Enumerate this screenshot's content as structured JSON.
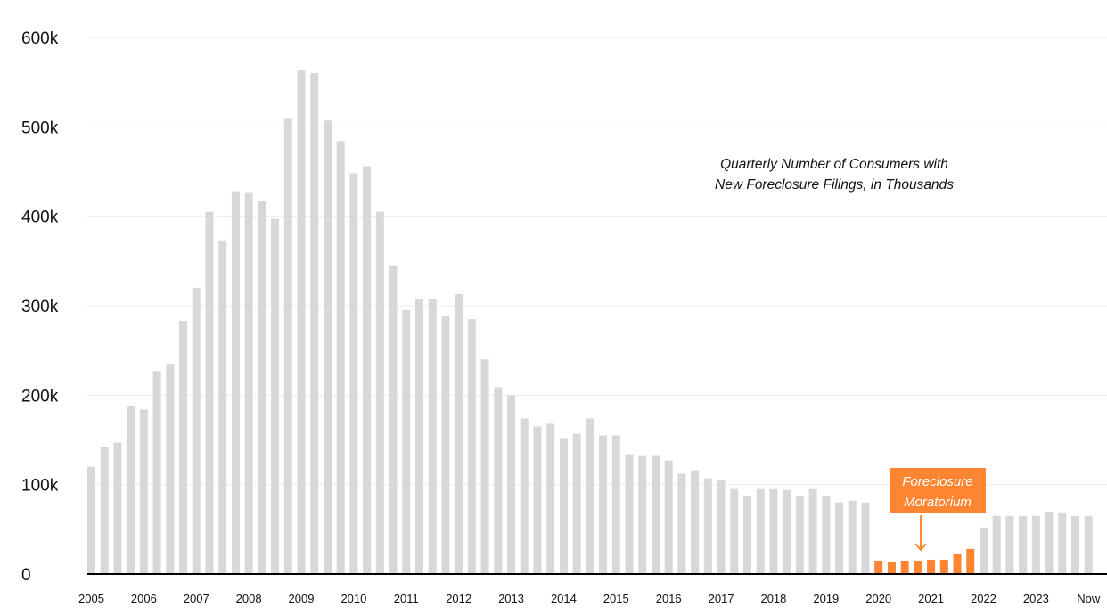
{
  "chart_data": {
    "type": "bar",
    "title": "",
    "xlabel": "",
    "ylabel": "",
    "annotation": [
      "Quarterly Number of Consumers with",
      "New Foreclosure Filings, in Thousands"
    ],
    "ylim": [
      0,
      600000
    ],
    "y_ticks": [
      {
        "value": 0,
        "label": "0"
      },
      {
        "value": 100000,
        "label": "100k"
      },
      {
        "value": 200000,
        "label": "200k"
      },
      {
        "value": 300000,
        "label": "300k"
      },
      {
        "value": 400000,
        "label": "400k"
      },
      {
        "value": 500000,
        "label": "500k"
      },
      {
        "value": 600000,
        "label": "600k"
      }
    ],
    "x_ticks": [
      {
        "label": "2005",
        "bar_index": 0
      },
      {
        "label": "2006",
        "bar_index": 4
      },
      {
        "label": "2007",
        "bar_index": 8
      },
      {
        "label": "2008",
        "bar_index": 12
      },
      {
        "label": "2009",
        "bar_index": 16
      },
      {
        "label": "2010",
        "bar_index": 20
      },
      {
        "label": "2011",
        "bar_index": 24
      },
      {
        "label": "2012",
        "bar_index": 28
      },
      {
        "label": "2013",
        "bar_index": 32
      },
      {
        "label": "2014",
        "bar_index": 36
      },
      {
        "label": "2015",
        "bar_index": 40
      },
      {
        "label": "2016",
        "bar_index": 44
      },
      {
        "label": "2017",
        "bar_index": 48
      },
      {
        "label": "2018",
        "bar_index": 52
      },
      {
        "label": "2019",
        "bar_index": 56
      },
      {
        "label": "2020",
        "bar_index": 60
      },
      {
        "label": "2021",
        "bar_index": 64
      },
      {
        "label": "2022",
        "bar_index": 68
      },
      {
        "label": "2023",
        "bar_index": 72
      },
      {
        "label": "Now",
        "bar_index": 76
      }
    ],
    "values": [
      120000,
      142000,
      147000,
      188000,
      184000,
      227000,
      235000,
      283000,
      320000,
      405000,
      373000,
      428000,
      427000,
      417000,
      397000,
      510000,
      564000,
      560000,
      507000,
      484000,
      448000,
      456000,
      405000,
      345000,
      295000,
      308000,
      307000,
      288000,
      313000,
      285000,
      240000,
      209000,
      200000,
      174000,
      165000,
      168000,
      152000,
      157000,
      174000,
      155000,
      155000,
      134000,
      132000,
      132000,
      127000,
      112000,
      116000,
      107000,
      105000,
      95000,
      87000,
      95000,
      95000,
      94000,
      87000,
      95000,
      87000,
      80000,
      82000,
      80000,
      15000,
      13000,
      15000,
      15000,
      16000,
      16000,
      22000,
      28000,
      52000,
      65000,
      65000,
      65000,
      65000,
      69000,
      68000,
      65000,
      65000
    ],
    "highlighted_bars": [
      60,
      61,
      62,
      63,
      64,
      65,
      66,
      67
    ],
    "callout": {
      "lines": [
        "Foreclosure",
        "Moratorium"
      ],
      "points_to_bar": 64
    },
    "colors": {
      "bar": "#d8d8d8",
      "highlight": "#ff8533",
      "callout_bg": "#ff8533",
      "grid": "#ececec",
      "axis": "#000000"
    },
    "grid": true,
    "legend": "none"
  }
}
